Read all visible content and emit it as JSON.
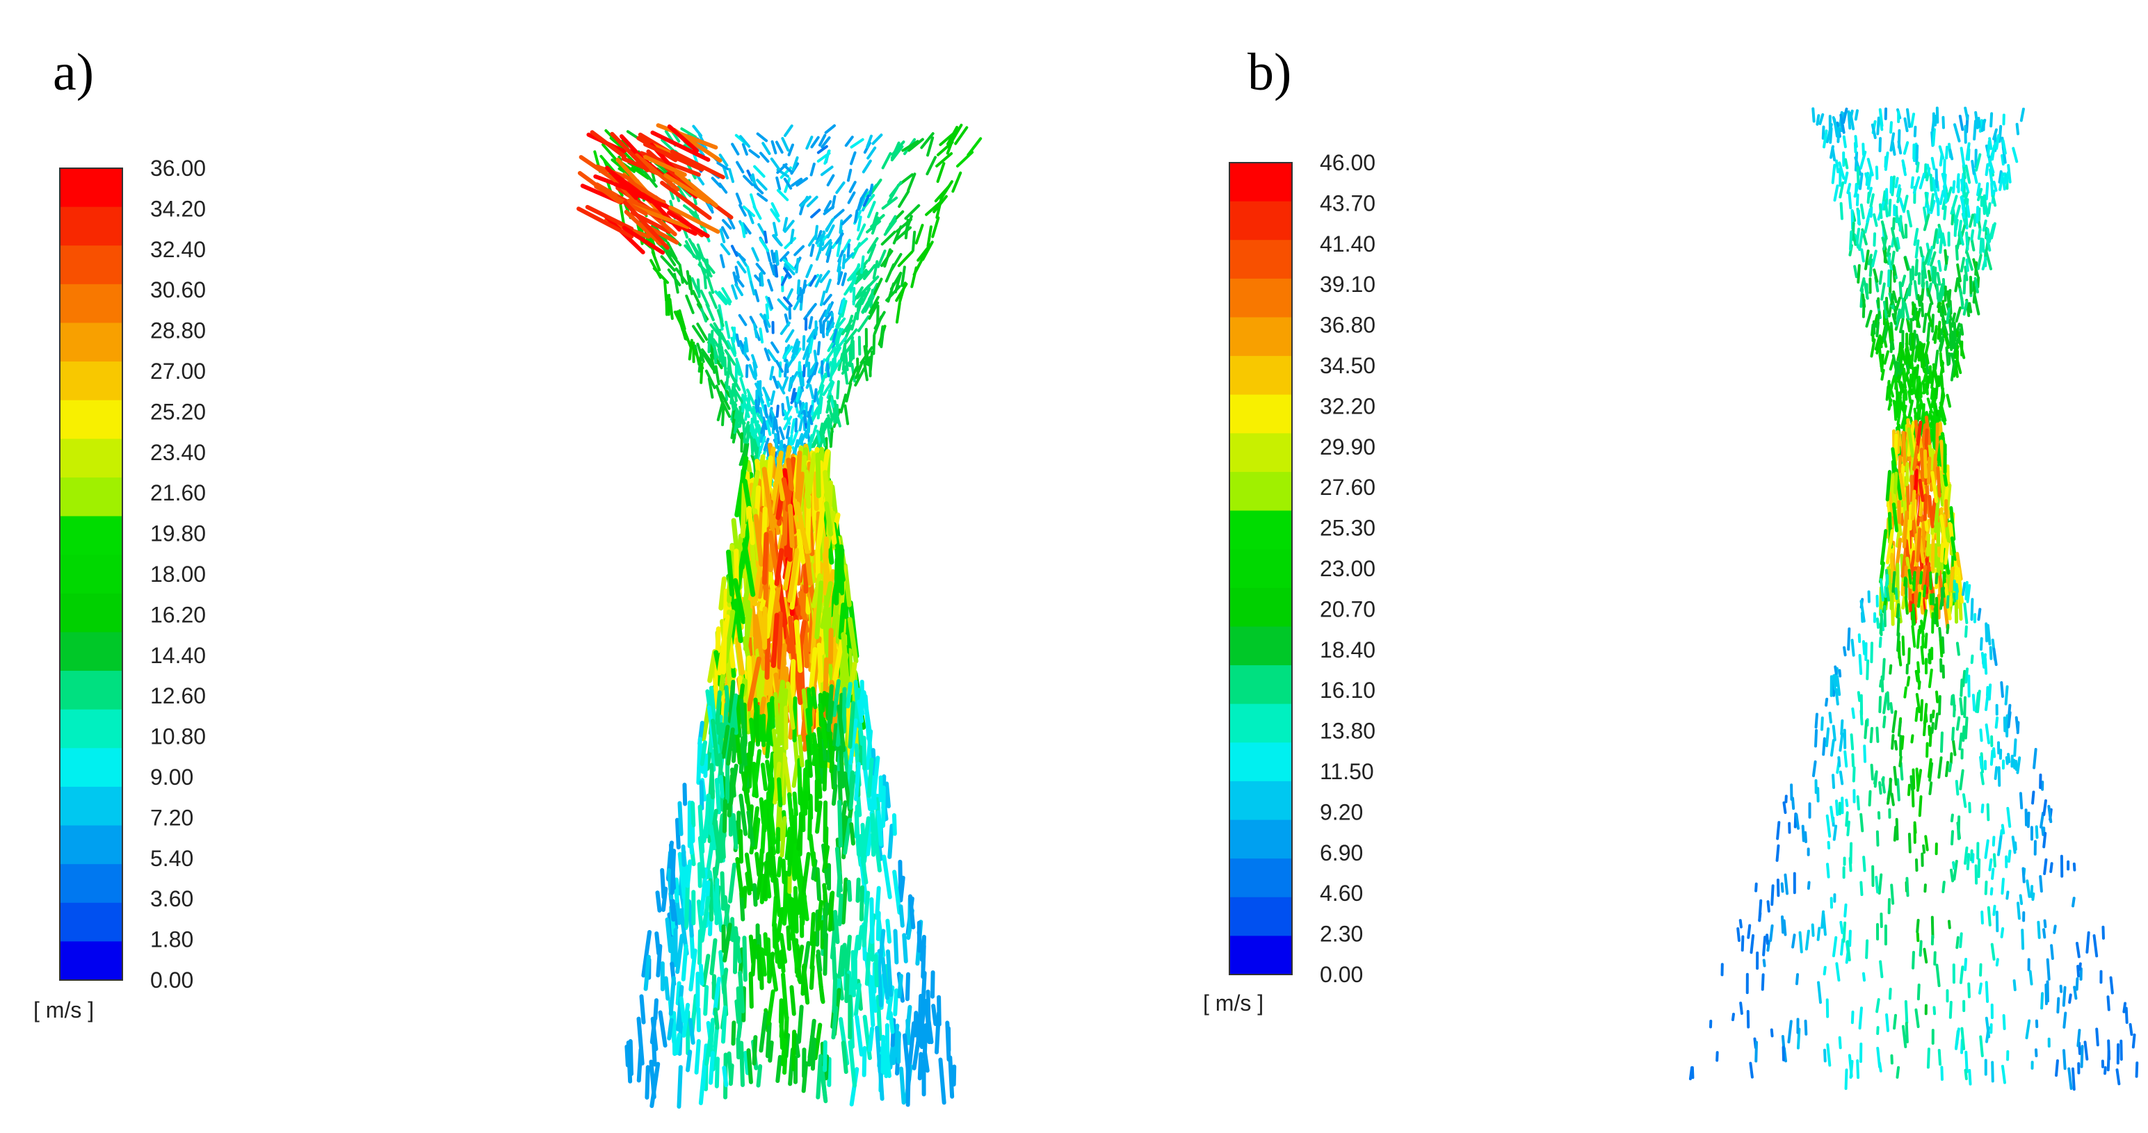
{
  "panels": [
    {
      "label": "a)",
      "unit": "[ m/s ]",
      "ticks": [
        "36.00",
        "34.20",
        "32.40",
        "30.60",
        "28.80",
        "27.00",
        "25.20",
        "23.40",
        "21.60",
        "19.80",
        "18.00",
        "16.20",
        "14.40",
        "12.60",
        "10.80",
        "9.00",
        "7.20",
        "5.40",
        "3.60",
        "1.80",
        "0.00"
      ]
    },
    {
      "label": "b)",
      "unit": "[ m/s ]",
      "ticks": [
        "46.00",
        "43.70",
        "41.40",
        "39.10",
        "36.80",
        "34.50",
        "32.20",
        "29.90",
        "27.60",
        "25.30",
        "23.00",
        "20.70",
        "18.40",
        "16.10",
        "13.80",
        "11.50",
        "9.20",
        "6.90",
        "4.60",
        "2.30",
        "0.00"
      ]
    }
  ],
  "colormap": [
    "#ff0000",
    "#f82800",
    "#f85000",
    "#f87800",
    "#f8a000",
    "#f8c800",
    "#f8f000",
    "#c8f000",
    "#a0f000",
    "#00dc00",
    "#00d800",
    "#00d000",
    "#00c828",
    "#00e080",
    "#00f0c0",
    "#00f0f0",
    "#00c8f0",
    "#00a0f0",
    "#0078f0",
    "#0050f0",
    "#0000f0"
  ]
}
